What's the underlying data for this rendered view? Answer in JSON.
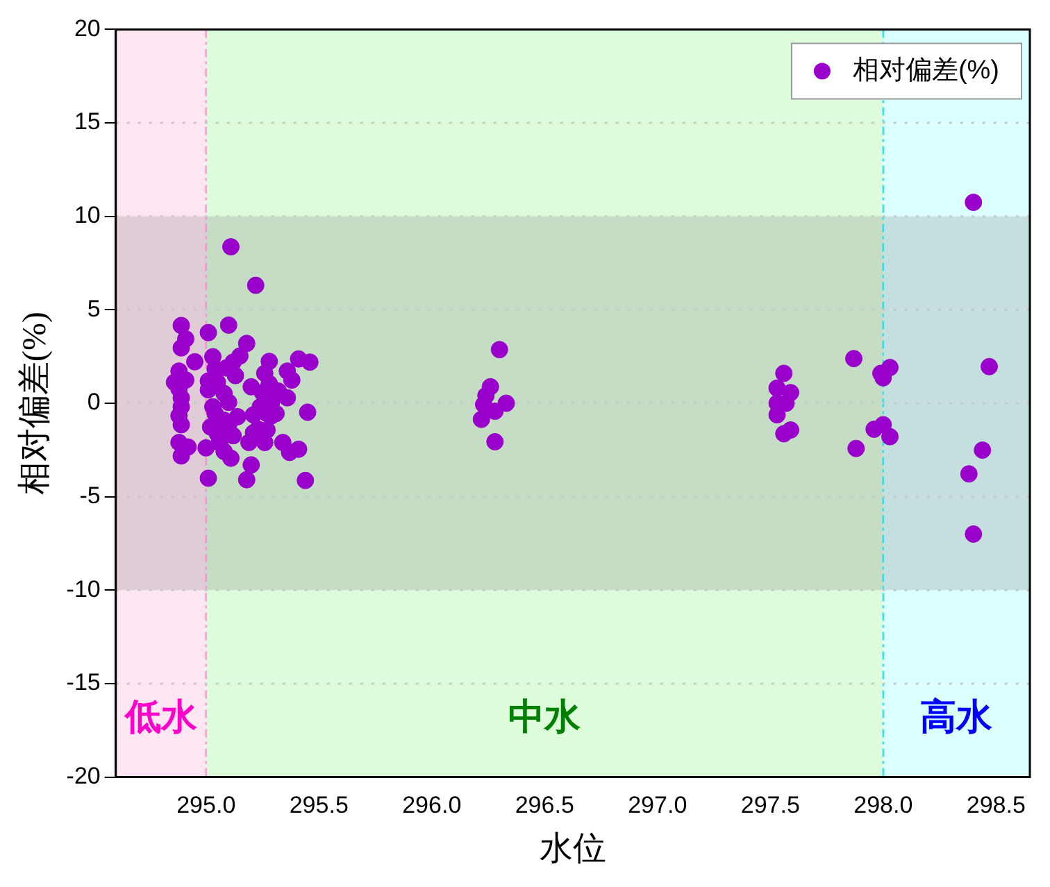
{
  "chart_data": {
    "type": "scatter",
    "xlabel": "水位",
    "ylabel": "相对偏差(%)",
    "xlim": [
      294.6,
      298.65
    ],
    "ylim": [
      -20,
      20
    ],
    "xticks": [
      {
        "value": 295,
        "label": "295.0"
      },
      {
        "value": 295.5,
        "label": "295.5"
      },
      {
        "value": 296,
        "label": "296.0"
      },
      {
        "value": 296.5,
        "label": "296.5"
      },
      {
        "value": 297,
        "label": "297.0"
      },
      {
        "value": 297.5,
        "label": "297.5"
      },
      {
        "value": 298,
        "label": "298.0"
      },
      {
        "value": 298.5,
        "label": "298.5"
      }
    ],
    "yticks": [
      -20,
      -15,
      -10,
      -5,
      0,
      5,
      10,
      15,
      20
    ],
    "grid": "y",
    "legend": "top right",
    "marker": "circle",
    "ref_lines": [
      {
        "axis": "x",
        "value": 295,
        "color": "#ff80d0",
        "line_style": "dashed"
      },
      {
        "axis": "x",
        "value": 298,
        "color": "#00e0ff",
        "line_style": "dashed"
      }
    ],
    "bands": [
      {
        "axis": "x",
        "from": 294.6,
        "to": 295,
        "label": "低水",
        "color": "#ffe6f3"
      },
      {
        "axis": "x",
        "from": 295,
        "to": 298,
        "label": "中水",
        "color": "#dcfcdc"
      },
      {
        "axis": "x",
        "from": 298,
        "to": 298.65,
        "label": "高水",
        "color": "#dcffff"
      },
      {
        "axis": "y",
        "from": -10,
        "to": 10,
        "color": "#808080"
      }
    ],
    "series": [
      {
        "name": "相对偏差(%)",
        "color": "#9900cc",
        "x": [
          295.11,
          295.22,
          294.89,
          295.01,
          295.1,
          294.91,
          294.89,
          295.18,
          294.95,
          295.03,
          295.15,
          295.12,
          295.28,
          295.41,
          295.46,
          295.36,
          295.26,
          295.04,
          295.09,
          294.88,
          294.91,
          295.01,
          295.13,
          295.38,
          295.28,
          295.2,
          295.05,
          294.88,
          295.32,
          295.25,
          295.08,
          295.01,
          294.89,
          295.36,
          295.29,
          295.1,
          295.03,
          295.45,
          294.89,
          294.88,
          295.14,
          295.21,
          295.27,
          295.31,
          295.04,
          294.89,
          295.02,
          295.1,
          295.27,
          295.21,
          295.12,
          295.05,
          294.88,
          294.92,
          295.0,
          295.19,
          295.26,
          295.34,
          295.41,
          295.37,
          294.89,
          295.11,
          295.2,
          295.01,
          295.18,
          295.44,
          295.06,
          295.08,
          295.08,
          295.23,
          295.24,
          295.29,
          294.86,
          296.3,
          296.26,
          296.24,
          296.33,
          296.28,
          296.22,
          296.28,
          296.23,
          297.56,
          297.53,
          297.59,
          297.53,
          297.57,
          297.53,
          297.59,
          297.56,
          297.87,
          297.88,
          297.99,
          298.03,
          298.0,
          297.96,
          298.0,
          298.03,
          298.47,
          298.44,
          298.38,
          298.4,
          298.4
        ],
        "values": [
          8.37,
          6.31,
          4.16,
          3.78,
          4.18,
          3.44,
          2.96,
          3.2,
          2.22,
          2.49,
          2.53,
          2.2,
          2.24,
          2.37,
          2.2,
          1.72,
          1.6,
          1.84,
          1.89,
          1.72,
          1.24,
          1.19,
          1.48,
          1.24,
          1.05,
          0.88,
          1.12,
          0.77,
          0.65,
          0.57,
          0.52,
          0.72,
          0.29,
          0.29,
          0.05,
          0.05,
          -0.19,
          -0.48,
          -0.19,
          -0.67,
          -0.72,
          -0.62,
          -0.55,
          -0.55,
          -0.55,
          -1.15,
          -1.27,
          -1.15,
          -1.43,
          -1.58,
          -1.74,
          -1.63,
          -2.1,
          -2.34,
          -2.39,
          -2.1,
          -2.1,
          -2.1,
          -2.46,
          -2.63,
          -2.82,
          -2.94,
          -3.3,
          -4.01,
          -4.09,
          -4.13,
          -2.1,
          -2.58,
          -0.91,
          -1.39,
          -0.19,
          -0.67,
          1.12,
          2.87,
          0.88,
          0.41,
          0,
          -0.43,
          -0.86,
          -2.06,
          -0.07,
          1.6,
          0.81,
          0.57,
          0,
          0,
          -0.62,
          -1.43,
          -1.63,
          2.39,
          -2.42,
          1.6,
          1.91,
          1.36,
          -1.39,
          -1.15,
          -1.79,
          1.96,
          -2.51,
          -3.78,
          -7,
          10.75
        ]
      }
    ]
  }
}
